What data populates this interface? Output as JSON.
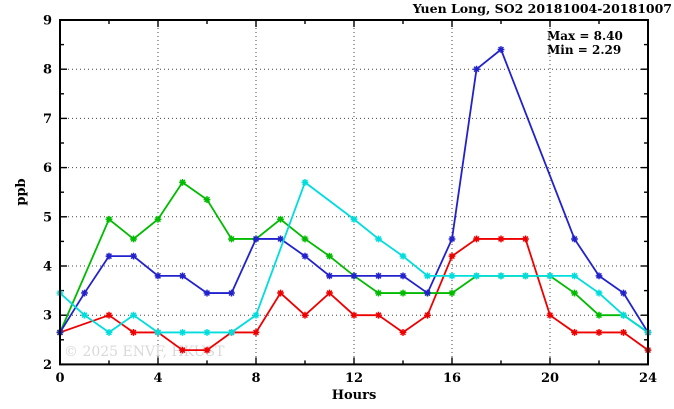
{
  "watermark": "© 2025 ENVF, HKUST",
  "colors": {
    "background": "#ffffff",
    "frame": "#000000",
    "grid": "#444444",
    "watermark": "#d9d9d9",
    "series_red": "#ee0000",
    "series_green": "#00bb00",
    "series_blue": "#2222cc",
    "series_cyan": "#00dddd"
  },
  "chart_data": {
    "type": "line",
    "title": "Yuen Long, SO2 20181004-20181007",
    "annotations": [
      "Max = 8.40",
      "Min = 2.29"
    ],
    "xlabel": "Hours",
    "ylabel": "ppb",
    "xlim": [
      0,
      24
    ],
    "ylim": [
      2,
      9
    ],
    "x_major_ticks": [
      0,
      4,
      8,
      12,
      16,
      20,
      24
    ],
    "x_minor_ticks": [
      2,
      6,
      10,
      14,
      18,
      22
    ],
    "y_major_ticks": [
      2,
      3,
      4,
      5,
      6,
      7,
      8,
      9
    ],
    "y_minor_ticks": [
      2.5,
      3.5,
      4.5,
      5.5,
      6.5,
      7.5,
      8.5
    ],
    "grid_x": [
      4,
      8,
      12,
      16,
      20
    ],
    "grid_y": [
      3,
      4,
      5,
      6,
      7,
      8
    ],
    "grid_style": "dotted",
    "legend_position": "none",
    "marker": "asterisk",
    "x": [
      0,
      1,
      2,
      3,
      4,
      5,
      6,
      7,
      8,
      9,
      10,
      11,
      12,
      13,
      14,
      15,
      16,
      17,
      18,
      19,
      20,
      21,
      22,
      23,
      24
    ],
    "series": [
      {
        "name": "red",
        "values": [
          2.65,
          null,
          3.0,
          2.65,
          2.65,
          2.29,
          2.29,
          2.65,
          2.65,
          3.45,
          3.0,
          3.45,
          3.0,
          3.0,
          2.65,
          3.0,
          4.2,
          4.55,
          4.55,
          4.55,
          3.0,
          2.65,
          2.65,
          2.65,
          2.29
        ]
      },
      {
        "name": "green",
        "values": [
          2.65,
          null,
          4.95,
          4.55,
          4.95,
          5.7,
          5.35,
          4.55,
          4.55,
          4.95,
          4.55,
          4.2,
          3.8,
          3.45,
          3.45,
          3.45,
          3.45,
          3.8,
          3.8,
          3.8,
          3.8,
          3.45,
          3.0,
          3.0,
          2.65
        ]
      },
      {
        "name": "blue",
        "values": [
          2.65,
          3.45,
          4.2,
          4.2,
          3.8,
          3.8,
          3.45,
          3.45,
          4.55,
          4.55,
          4.2,
          3.8,
          3.8,
          3.8,
          3.8,
          3.45,
          4.55,
          8.0,
          8.4,
          null,
          null,
          4.55,
          3.8,
          3.45,
          2.65
        ]
      },
      {
        "name": "cyan",
        "values": [
          3.45,
          3.0,
          2.65,
          3.0,
          2.65,
          2.65,
          2.65,
          2.65,
          3.0,
          null,
          5.7,
          null,
          4.95,
          4.55,
          4.2,
          3.8,
          3.8,
          3.8,
          3.8,
          3.8,
          3.8,
          3.8,
          3.45,
          3.0,
          2.65
        ]
      }
    ]
  }
}
